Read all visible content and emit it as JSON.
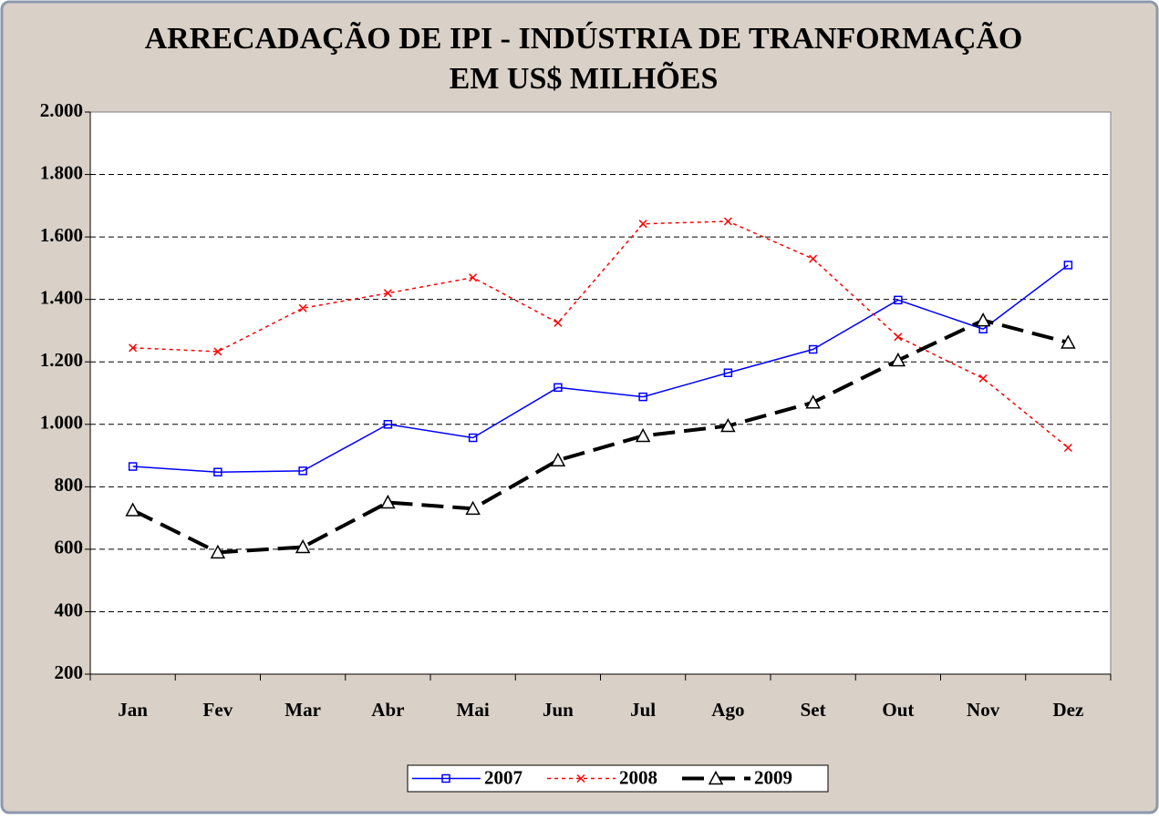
{
  "chart_data": {
    "type": "line",
    "title": "ARRECADAÇÃO DE IPI - INDÚSTRIA DE TRANFORMAÇÃO",
    "subtitle": "EM US$ MILHÕES",
    "categories": [
      "Jan",
      "Fev",
      "Mar",
      "Abr",
      "Mai",
      "Jun",
      "Jul",
      "Ago",
      "Set",
      "Out",
      "Nov",
      "Dez"
    ],
    "series": [
      {
        "name": "2007",
        "color": "#0000ff",
        "marker": "square",
        "dash": "solid",
        "values": [
          865,
          847,
          851,
          1000,
          957,
          1118,
          1088,
          1165,
          1240,
          1398,
          1305,
          1510
        ]
      },
      {
        "name": "2008",
        "color": "#ff0000",
        "marker": "x",
        "dash": "dotted",
        "values": [
          1245,
          1233,
          1372,
          1420,
          1470,
          1325,
          1642,
          1650,
          1530,
          1280,
          1147,
          925
        ]
      },
      {
        "name": "2009",
        "color": "#000000",
        "marker": "triangle",
        "dash": "dashed",
        "values": [
          725,
          590,
          607,
          750,
          730,
          885,
          963,
          995,
          1070,
          1205,
          1333,
          1262
        ]
      }
    ],
    "ylim": [
      200,
      2000
    ],
    "yticks": [
      200,
      400,
      600,
      800,
      {
        "value": 1000,
        "label": "1.000"
      },
      {
        "value": 1200,
        "label": "1.200"
      },
      {
        "value": 1400,
        "label": "1.400"
      },
      {
        "value": 1600,
        "label": "1.600"
      },
      {
        "value": 1800,
        "label": "1.800"
      },
      {
        "value": 2000,
        "label": "2.000"
      }
    ],
    "grid": true,
    "legend": "bottom"
  }
}
